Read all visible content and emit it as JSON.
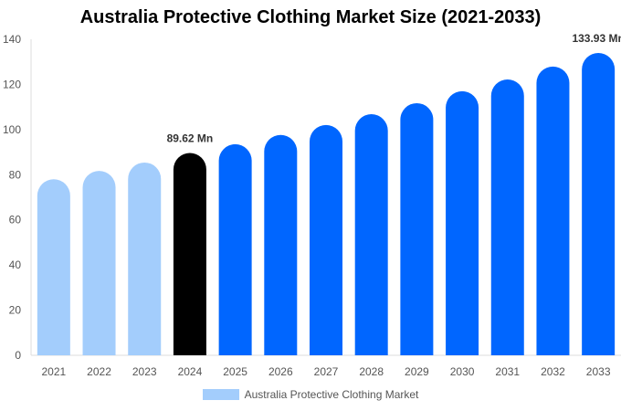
{
  "chart_data": {
    "type": "bar",
    "title": "Australia Protective Clothing Market Size (2021-2033)",
    "categories": [
      "2021",
      "2022",
      "2023",
      "2024",
      "2025",
      "2026",
      "2027",
      "2028",
      "2029",
      "2030",
      "2031",
      "2032",
      "2033"
    ],
    "series": [
      {
        "name": "Australia Protective Clothing Market",
        "values": [
          78.0,
          81.7,
          85.4,
          89.62,
          93.5,
          97.6,
          102.0,
          106.8,
          111.7,
          117.0,
          122.2,
          127.9,
          133.93
        ]
      }
    ],
    "data_labels": [
      {
        "category": "2024",
        "text": "89.62 Mn"
      },
      {
        "category": "2033",
        "text": "133.93 Mn"
      }
    ],
    "ylim": [
      0,
      140
    ],
    "yticks": [
      0,
      20,
      40,
      60,
      80,
      100,
      120,
      140
    ],
    "grid": false,
    "legend_position": "bottom",
    "colors": {
      "historical": "#a3cdfc",
      "base_year": "#000000",
      "forecast": "#0066ff"
    }
  }
}
